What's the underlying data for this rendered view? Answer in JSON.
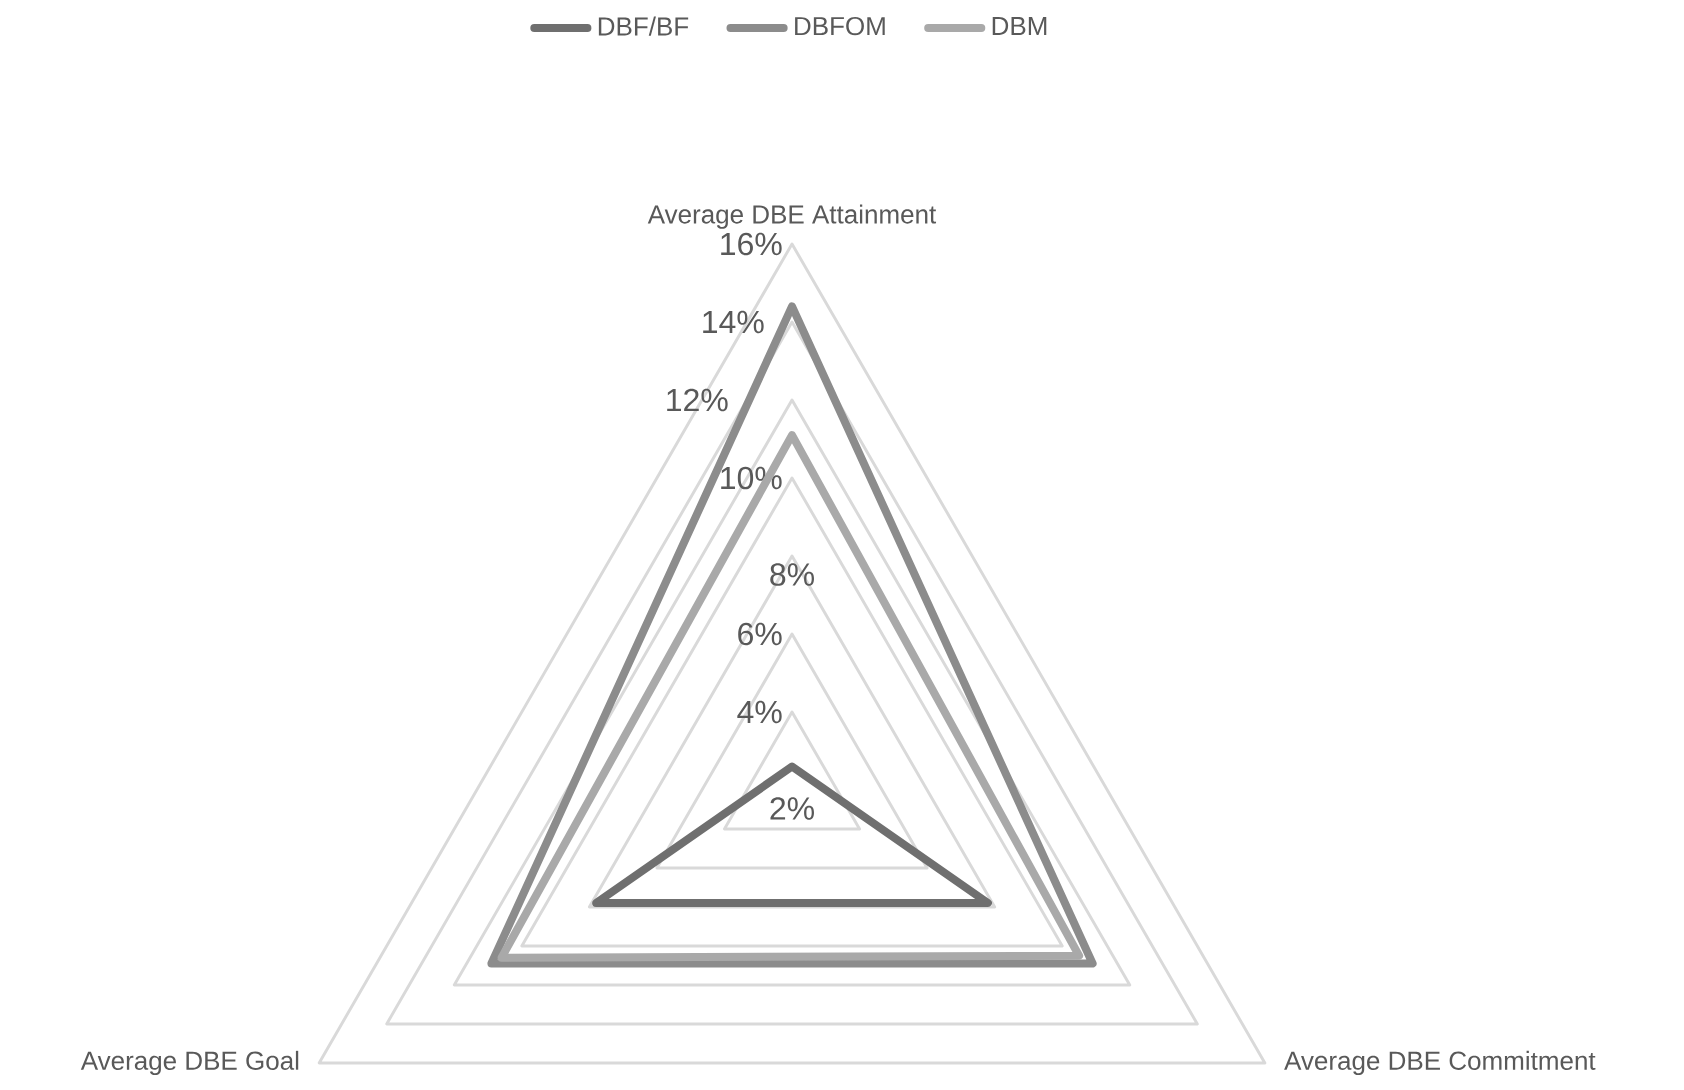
{
  "chart_data": {
    "type": "radar",
    "categories": [
      "Average DBE Attainment",
      "Average DBE Commitment",
      "Average DBE Goal"
    ],
    "series": [
      {
        "name": "DBF/BF",
        "color": "#6f6f6f",
        "values": [
          2.6,
          7.8,
          7.8
        ]
      },
      {
        "name": "DBFOM",
        "color": "#8c8c8c",
        "values": [
          14.4,
          10.9,
          10.9
        ]
      },
      {
        "name": "DBM",
        "color": "#a9a9a9",
        "values": [
          11.1,
          10.5,
          10.6
        ]
      }
    ],
    "ylim": [
      2,
      16
    ],
    "yticks": [
      {
        "value": 2,
        "label": "2%"
      },
      {
        "value": 4,
        "label": "4%"
      },
      {
        "value": 6,
        "label": "6%"
      },
      {
        "value": 8,
        "label": "8%"
      },
      {
        "value": 10,
        "label": "10%"
      },
      {
        "value": 12,
        "label": "12%"
      },
      {
        "value": 14,
        "label": "14%"
      },
      {
        "value": 16,
        "label": "16%"
      }
    ],
    "grid": true,
    "legend": "top"
  }
}
